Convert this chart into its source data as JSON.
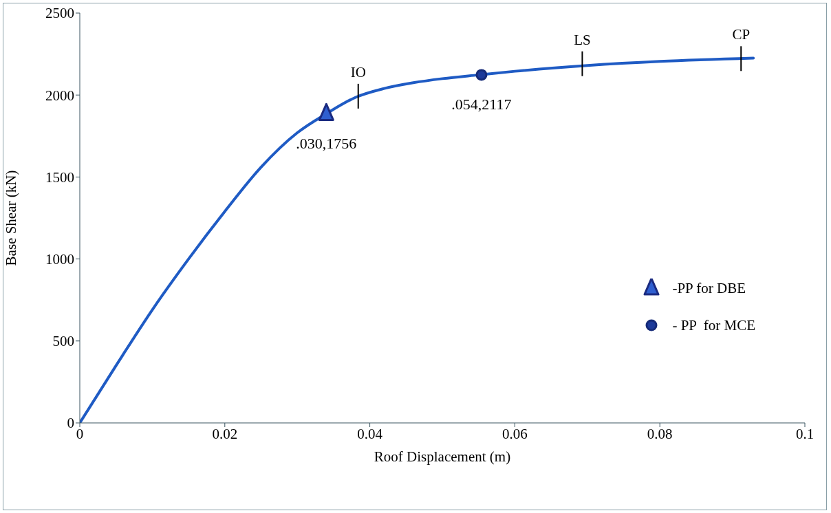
{
  "chart_data": {
    "type": "line",
    "xlabel": "Roof Displacement (m)",
    "ylabel": "Base Shear (kN)",
    "xlim": [
      0,
      0.1
    ],
    "xticks": [
      0,
      0.02,
      0.04,
      0.06,
      0.08,
      0.1
    ],
    "ylim": [
      0,
      2500
    ],
    "yticks": [
      0,
      500,
      1000,
      1500,
      2000,
      2500
    ],
    "grid": false,
    "legend": "right",
    "line_style": "solid",
    "marker": "none",
    "series": [
      {
        "color": "#1f5bc4",
        "x": [
          0,
          0.005,
          0.01,
          0.015,
          0.02,
          0.025,
          0.03,
          0.034,
          0.038,
          0.042,
          0.046,
          0.05,
          0.055,
          0.06,
          0.07,
          0.08,
          0.0929
        ],
        "values": [
          0,
          350,
          690,
          1000,
          1290,
          1560,
          1770,
          1886,
          1985,
          2040,
          2075,
          2100,
          2123,
          2145,
          2180,
          2205,
          2225
        ]
      },
      {
        "type": "scatter",
        "name": "-PP for DBE",
        "color": "#2f5fd0",
        "marker": "triangle",
        "x": [
          0.034
        ],
        "values": [
          1886
        ],
        "value_labels": [
          ".030,1756"
        ]
      },
      {
        "type": "scatter",
        "name": "- PP  for MCE",
        "color": "#1c3a9a",
        "marker": "circle",
        "x": [
          0.0554
        ],
        "values": [
          2123
        ],
        "value_labels": [
          ".054,2117"
        ]
      }
    ],
    "annotations": [
      {
        "text": "IO",
        "x": 0.0384,
        "y": 1993
      },
      {
        "text": "LS",
        "x": 0.0693,
        "y": 2191
      },
      {
        "text": "CP",
        "x": 0.0912,
        "y": 2222
      }
    ]
  }
}
